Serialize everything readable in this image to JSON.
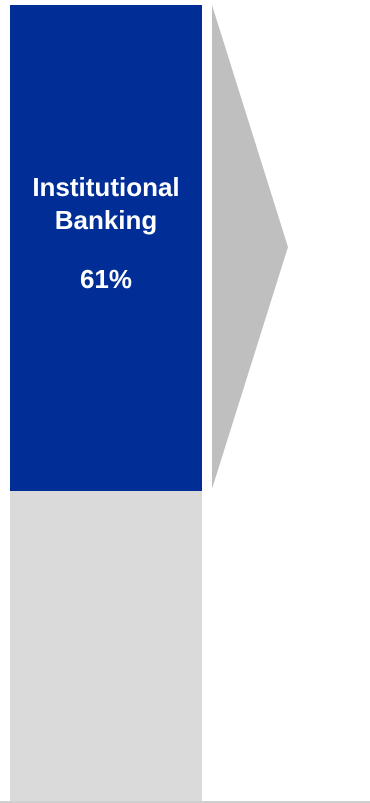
{
  "chart_data": {
    "type": "bar",
    "orientation": "stacked-vertical",
    "segments": [
      {
        "name": "Institutional Banking",
        "name_lines": [
          "Institutional",
          "Banking"
        ],
        "value": 61,
        "value_label": "61%",
        "color": "#002d96",
        "labeled": true
      },
      {
        "name": "",
        "value": 39,
        "value_label": "",
        "color": "#dadada",
        "labeled": false
      }
    ],
    "total": 100,
    "callout_arrow_color": "#bfbfbf"
  }
}
